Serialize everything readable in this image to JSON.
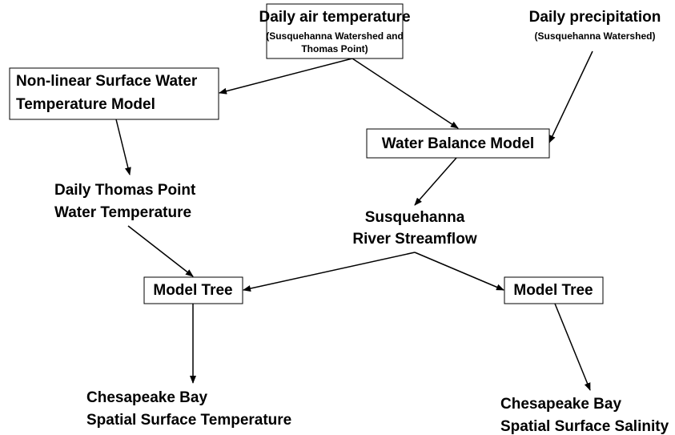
{
  "nodes": [
    {
      "lines": [
        "Daily air temperature"
      ],
      "note": [
        "(Susquehanna Watershed and",
        "Thomas Point)"
      ]
    },
    {
      "lines": [
        "Daily precipitation"
      ],
      "note": [
        "(Susquehanna Watershed)"
      ]
    },
    {
      "lines": [
        "Non-linear Surface Water",
        "Temperature Model"
      ]
    },
    {
      "lines": [
        "Water Balance Model"
      ]
    },
    {
      "lines": [
        "Daily Thomas Point",
        "Water Temperature"
      ]
    },
    {
      "lines": [
        "Susquehanna",
        "River Streamflow"
      ]
    },
    {
      "lines": [
        "Model Tree"
      ]
    },
    {
      "lines": [
        "Model Tree"
      ]
    },
    {
      "lines": [
        "Chesapeake Bay",
        "Spatial Surface Temperature"
      ]
    },
    {
      "lines": [
        "Chesapeake Bay",
        "Spatial Surface Salinity"
      ]
    }
  ]
}
